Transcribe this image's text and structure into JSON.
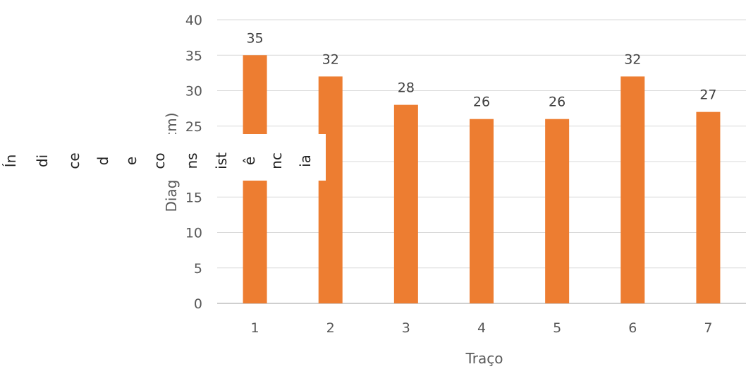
{
  "chart_data": {
    "type": "bar",
    "categories": [
      "1",
      "2",
      "3",
      "4",
      "5",
      "6",
      "7"
    ],
    "values": [
      35,
      32,
      28,
      26,
      26,
      32,
      27
    ],
    "title": "",
    "xlabel": "Traço",
    "ylabel": "Diagonal (cm)",
    "ylim": [
      0,
      40
    ],
    "yticks": [
      "0",
      "5",
      "10",
      "15",
      "20",
      "25",
      "30",
      "35",
      "40"
    ],
    "grid": true,
    "bar_color": "#ED7D31",
    "overlay_text_fragments": [
      "Ín",
      "di",
      "ce",
      "d",
      "e",
      "co",
      "ns",
      "ist",
      "ê",
      "nc",
      "ia"
    ]
  }
}
